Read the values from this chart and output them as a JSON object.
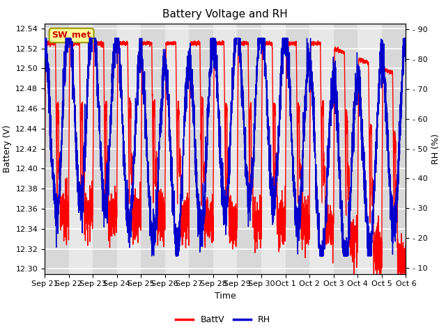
{
  "title": "Battery Voltage and RH",
  "xlabel": "Time",
  "ylabel_left": "Battery (V)",
  "ylabel_right": "RH (%)",
  "annotation_text": "SW_met",
  "annotation_box_facecolor": "#FFFF99",
  "annotation_box_edgecolor": "#999900",
  "annotation_text_color": "#CC0000",
  "ylim_left": [
    12.295,
    12.545
  ],
  "ylim_right": [
    8,
    92
  ],
  "yticks_left": [
    12.3,
    12.32,
    12.34,
    12.36,
    12.38,
    12.4,
    12.42,
    12.44,
    12.46,
    12.48,
    12.5,
    12.52,
    12.54
  ],
  "yticks_right": [
    10,
    20,
    30,
    40,
    50,
    60,
    70,
    80,
    90
  ],
  "xtick_labels": [
    "Sep 21",
    "Sep 22",
    "Sep 23",
    "Sep 24",
    "Sep 25",
    "Sep 26",
    "Sep 27",
    "Sep 28",
    "Sep 29",
    "Sep 30",
    "Oct 1",
    "Oct 2",
    "Oct 3",
    "Oct 4",
    "Oct 5",
    "Oct 6"
  ],
  "plot_bg": "#E8E8E8",
  "stripe_bg": "#D8D8D8",
  "fig_bg": "#FFFFFF",
  "grid_color": "#FFFFFF",
  "batt_color": "#FF0000",
  "rh_color": "#0000CC",
  "legend_batt": "BattV",
  "legend_rh": "RH",
  "title_fontsize": 11,
  "axis_label_fontsize": 9,
  "tick_fontsize": 8,
  "legend_fontsize": 9,
  "annotation_fontsize": 9,
  "linewidth": 1.0
}
